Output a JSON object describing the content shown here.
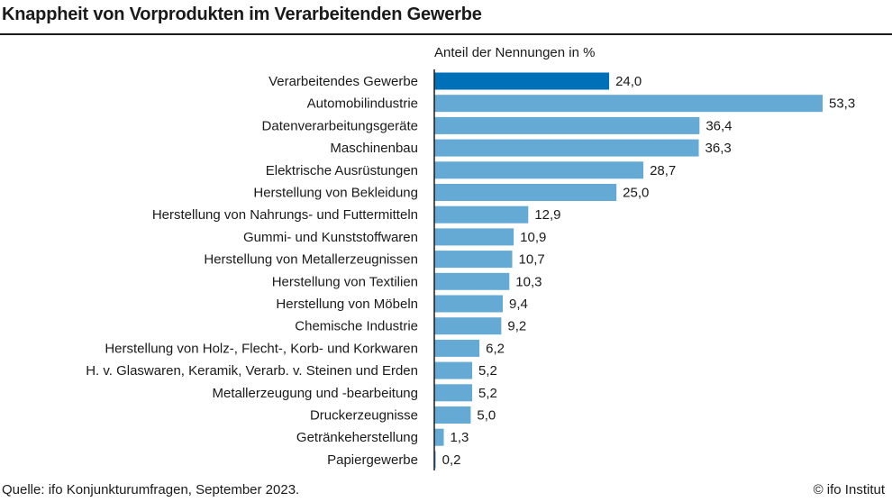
{
  "title": "Knappheit von Vorprodukten im Verarbeitenden Gewerbe",
  "source": "Quelle: ifo Konjunkturumfragen, September 2023.",
  "copyright": "© ifo Institut",
  "chart_data": {
    "type": "bar",
    "orientation": "horizontal",
    "title": "Knappheit von Vorprodukten im Verarbeitenden Gewerbe",
    "xlabel": "Anteil der Nennungen in %",
    "categories": [
      "Verarbeitendes Gewerbe",
      "Automobilindustrie",
      "Datenverarbeitungsgeräte",
      "Maschinenbau",
      "Elektrische Ausrüstungen",
      "Herstellung von Bekleidung",
      "Herstellung von Nahrungs- und Futtermitteln",
      "Gummi- und Kunststoffwaren",
      "Herstellung von Metallerzeugnissen",
      "Herstellung von Textilien",
      "Herstellung von Möbeln",
      "Chemische Industrie",
      "Herstellung von Holz-, Flecht-, Korb- und Korkwaren",
      "H. v. Glaswaren, Keramik, Verarb. v. Steinen und Erden",
      "Metallerzeugung und -bearbeitung",
      "Druckerzeugnisse",
      "Getränkeherstellung",
      "Papiergewerbe"
    ],
    "values": [
      24.0,
      53.3,
      36.4,
      36.3,
      28.7,
      25.0,
      12.9,
      10.9,
      10.7,
      10.3,
      9.4,
      9.2,
      6.2,
      5.2,
      5.2,
      5.0,
      1.3,
      0.2
    ],
    "labels": [
      "24,0",
      "53,3",
      "36,4",
      "36,3",
      "28,7",
      "25,0",
      "12,9",
      "10,9",
      "10,7",
      "10,3",
      "9,4",
      "9,2",
      "6,2",
      "5,2",
      "5,2",
      "5,0",
      "1,3",
      "0,2"
    ],
    "highlight_color": "#0070b8",
    "bar_color": "#65a9d5",
    "grid": false,
    "legend": "none"
  }
}
